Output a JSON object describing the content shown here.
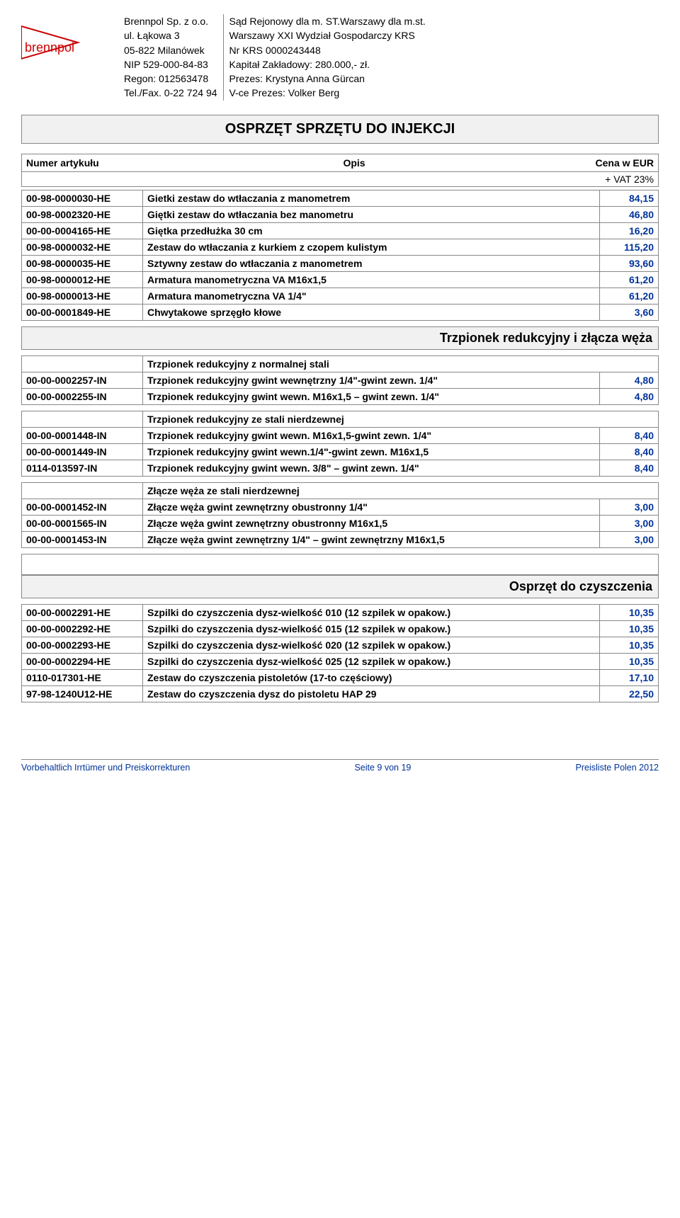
{
  "header": {
    "company_left": {
      "name": "Brennpol Sp. z o.o.",
      "address1": "ul. Łąkowa 3",
      "address2": "05-822 Milanówek",
      "nip": "NIP 529-000-84-83",
      "regon": "Regon: 012563478",
      "phone": "Tel./Fax. 0-22 724 94"
    },
    "company_right": {
      "court": "Sąd Rejonowy dla m. ST.Warszawy dla m.st.",
      "dept": "Warszawy XXI Wydział Gospodarczy  KRS",
      "krs": "Nr KRS 0000243448",
      "capital": "Kapitał Zakładowy: 280.000,- zł.",
      "president": "Prezes: Krystyna Anna Gürcan",
      "vp": "V-ce Prezes: Volker Berg"
    },
    "logo_text": "brennpol"
  },
  "banner": "OSPRZĘT SPRZĘTU DO INJEKCJI",
  "table_header": {
    "numer": "Numer artykułu",
    "opis": "Opis",
    "cena": "Cena w EUR",
    "vat": "+ VAT 23%"
  },
  "section1_rows": [
    {
      "num": "00-98-0000030-HE",
      "desc": "Gietki zestaw do wtłaczania z manometrem",
      "price": "84,15"
    },
    {
      "num": "00-98-0002320-HE",
      "desc": "Giętki zestaw do wtłaczania bez manometru",
      "price": "46,80"
    },
    {
      "num": "00-00-0004165-HE",
      "desc": "Giętka przedłużka 30 cm",
      "price": "16,20"
    },
    {
      "num": "00-98-0000032-HE",
      "desc": "Zestaw do wtłaczania z kurkiem z czopem kulistym",
      "price": "115,20"
    },
    {
      "num": "00-98-0000035-HE",
      "desc": "Sztywny zestaw do wtłaczania z manometrem",
      "price": "93,60"
    },
    {
      "num": "00-98-0000012-HE",
      "desc": "Armatura manometryczna VA M16x1,5",
      "price": "61,20"
    },
    {
      "num": "00-98-0000013-HE",
      "desc": "Armatura manometryczna  VA 1/4\"",
      "price": "61,20"
    },
    {
      "num": "00-00-0001849-HE",
      "desc": "Chwytakowe sprzęgło kłowe",
      "price": "3,60"
    }
  ],
  "section2": {
    "title": "Trzpionek redukcyjny i złącza węża",
    "subheading1": "Trzpionek redukcyjny z normalnej stali",
    "rows1": [
      {
        "num": "00-00-0002257-IN",
        "desc": "Trzpionek redukcyjny gwint wewnętrzny 1/4\"-gwint zewn. 1/4\"",
        "price": "4,80"
      },
      {
        "num": "00-00-0002255-IN",
        "desc": "Trzpionek redukcyjny gwint wewn. M16x1,5 – gwint zewn. 1/4\"",
        "price": "4,80"
      }
    ],
    "subheading2": "Trzpionek redukcyjny ze stali nierdzewnej",
    "rows2": [
      {
        "num": "00-00-0001448-IN",
        "desc": "Trzpionek redukcyjny gwint wewn. M16x1,5-gwint zewn. 1/4\"",
        "price": "8,40"
      },
      {
        "num": "00-00-0001449-IN",
        "desc": "Trzpionek redukcyjny gwint wewn.1/4\"-gwint zewn. M16x1,5",
        "price": "8,40"
      },
      {
        "num": "0114-013597-IN",
        "desc": "Trzpionek redukcyjny gwint wewn. 3/8\" – gwint zewn. 1/4\"",
        "price": "8,40"
      }
    ],
    "subheading3": "Złącze węża ze stali nierdzewnej",
    "rows3": [
      {
        "num": "00-00-0001452-IN",
        "desc": "Złącze węża gwint zewnętrzny obustronny 1/4\"",
        "price": "3,00"
      },
      {
        "num": "00-00-0001565-IN",
        "desc": "Złącze węża gwint zewnętrzny obustronny M16x1,5",
        "price": "3,00"
      },
      {
        "num": "00-00-0001453-IN",
        "desc": "Złącze węża gwint zewnętrzny 1/4\" – gwint zewnętrzny M16x1,5",
        "price": "3,00"
      }
    ]
  },
  "section3": {
    "title": "Osprzęt do czyszczenia",
    "rows": [
      {
        "num": "00-00-0002291-HE",
        "desc": "Szpilki do czyszczenia dysz-wielkość 010 (12 szpilek w opakow.)",
        "price": "10,35"
      },
      {
        "num": "00-00-0002292-HE",
        "desc": "Szpilki do czyszczenia dysz-wielkość 015 (12 szpilek w opakow.)",
        "price": "10,35"
      },
      {
        "num": "00-00-0002293-HE",
        "desc": "Szpilki do czyszczenia dysz-wielkość 020 (12 szpilek w opakow.)",
        "price": "10,35"
      },
      {
        "num": "00-00-0002294-HE",
        "desc": "Szpilki do czyszczenia dysz-wielkość 025 (12 szpilek w opakow.)",
        "price": "10,35"
      },
      {
        "num": "0110-017301-HE",
        "desc": "Zestaw do czyszczenia pistoletów (17-to częściowy)",
        "price": "17,10"
      },
      {
        "num": "97-98-1240U12-HE",
        "desc": "Zestaw do czyszczenia dysz do pistoletu HAP 29",
        "price": "22,50"
      }
    ]
  },
  "footer": {
    "left": "Vorbehaltlich Irrtümer und Preiskorrekturen",
    "center": "Seite 9 von 19",
    "right": "Preisliste Polen 2012"
  }
}
